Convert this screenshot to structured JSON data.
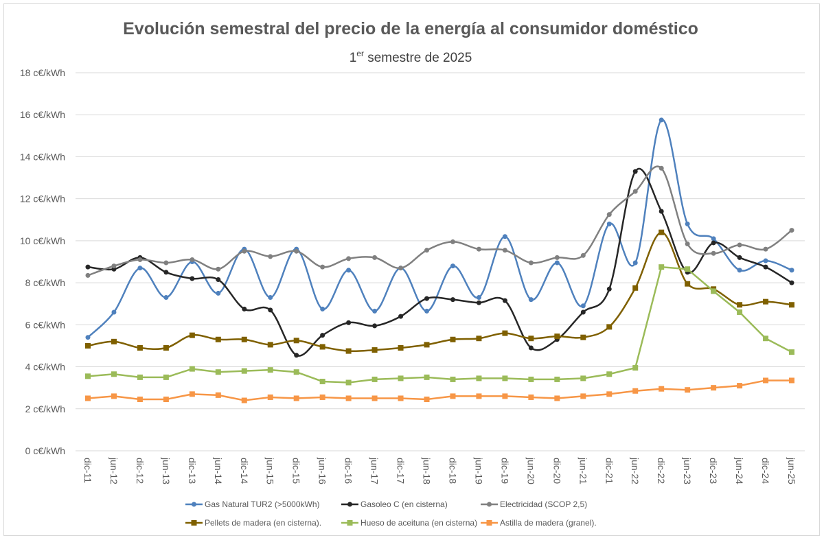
{
  "chart_data": {
    "type": "line",
    "title": "Evolución semestral del precio de la energía al consumidor doméstico",
    "subtitle": {
      "prefix": "1",
      "superscript": "er",
      "rest": " semestre de 2025"
    },
    "ylim": [
      0,
      18
    ],
    "yticks": [
      0,
      2,
      4,
      6,
      8,
      10,
      12,
      14,
      16,
      18
    ],
    "ytick_labels": [
      "0 c€/kWh",
      "2 c€/kWh",
      "4 c€/kWh",
      "6 c€/kWh",
      "8 c€/kWh",
      "10 c€/kWh",
      "12 c€/kWh",
      "14 c€/kWh",
      "16 c€/kWh",
      "18 c€/kWh"
    ],
    "grid": true,
    "legend_placement": "bottom",
    "categories": [
      "dic-11",
      "jun-12",
      "dic-12",
      "jun-13",
      "dic-13",
      "jun-14",
      "dic-14",
      "jun-15",
      "dic-15",
      "jun-16",
      "dic-16",
      "jun-17",
      "dic-17",
      "jun-18",
      "dic-18",
      "jun-19",
      "dic-19",
      "jun-20",
      "dic-20",
      "jun-21",
      "dic-21",
      "jun-22",
      "dic-22",
      "jun-23",
      "dic-23",
      "jun-24",
      "dic-24",
      "jun-25"
    ],
    "series": [
      {
        "name": "Gas Natural TUR2 (>5000kWh)",
        "color": "#4f81bd",
        "marker": "circle",
        "smooth": true,
        "values": [
          5.4,
          6.6,
          8.7,
          7.3,
          9.0,
          7.5,
          9.6,
          7.3,
          9.6,
          6.75,
          8.6,
          6.65,
          8.7,
          6.65,
          8.8,
          7.3,
          10.2,
          7.2,
          8.95,
          6.9,
          10.8,
          8.95,
          15.75,
          10.8,
          10.1,
          8.6,
          9.05,
          8.6
        ]
      },
      {
        "name": "Gasoleo C (en cisterna)",
        "color": "#262626",
        "marker": "circle",
        "smooth": true,
        "values": [
          8.75,
          8.65,
          9.2,
          8.5,
          8.2,
          8.15,
          6.75,
          6.7,
          4.55,
          5.5,
          6.1,
          5.95,
          6.4,
          7.25,
          7.2,
          7.05,
          7.15,
          4.9,
          5.3,
          6.6,
          7.7,
          13.3,
          11.4,
          8.5,
          9.9,
          9.2,
          8.75,
          8.0
        ]
      },
      {
        "name": "Electricidad (SCOP 2,5)",
        "color": "#808080",
        "marker": "circle",
        "smooth": true,
        "values": [
          8.35,
          8.8,
          9.1,
          8.95,
          9.1,
          8.65,
          9.5,
          9.25,
          9.5,
          8.75,
          9.15,
          9.2,
          8.7,
          9.55,
          9.95,
          9.6,
          9.55,
          8.95,
          9.2,
          9.3,
          11.25,
          12.35,
          13.45,
          9.85,
          9.4,
          9.8,
          9.6,
          10.5
        ]
      },
      {
        "name": "Pellets de madera (en cisterna).",
        "color": "#7f6000",
        "marker": "square",
        "smooth": true,
        "values": [
          5.0,
          5.2,
          4.9,
          4.9,
          5.5,
          5.3,
          5.3,
          5.05,
          5.25,
          4.95,
          4.75,
          4.8,
          4.9,
          5.05,
          5.3,
          5.35,
          5.6,
          5.35,
          5.45,
          5.4,
          5.9,
          7.75,
          10.4,
          7.95,
          7.7,
          6.95,
          7.1,
          6.95
        ]
      },
      {
        "name": "Hueso de aceituna (en cisterna)",
        "color": "#9bbb59",
        "marker": "square",
        "smooth": false,
        "values": [
          3.55,
          3.65,
          3.5,
          3.5,
          3.9,
          3.75,
          3.8,
          3.85,
          3.75,
          3.3,
          3.25,
          3.4,
          3.45,
          3.5,
          3.4,
          3.45,
          3.45,
          3.4,
          3.4,
          3.45,
          3.65,
          3.95,
          8.75,
          8.65,
          7.6,
          6.6,
          5.35,
          4.7
        ]
      },
      {
        "name": "Astilla de madera (granel).",
        "color": "#f79646",
        "marker": "square",
        "smooth": false,
        "values": [
          2.5,
          2.6,
          2.45,
          2.45,
          2.7,
          2.65,
          2.4,
          2.55,
          2.5,
          2.55,
          2.5,
          2.5,
          2.5,
          2.45,
          2.6,
          2.6,
          2.6,
          2.55,
          2.5,
          2.6,
          2.7,
          2.85,
          2.95,
          2.9,
          3.0,
          3.1,
          3.35,
          3.35
        ]
      }
    ]
  }
}
